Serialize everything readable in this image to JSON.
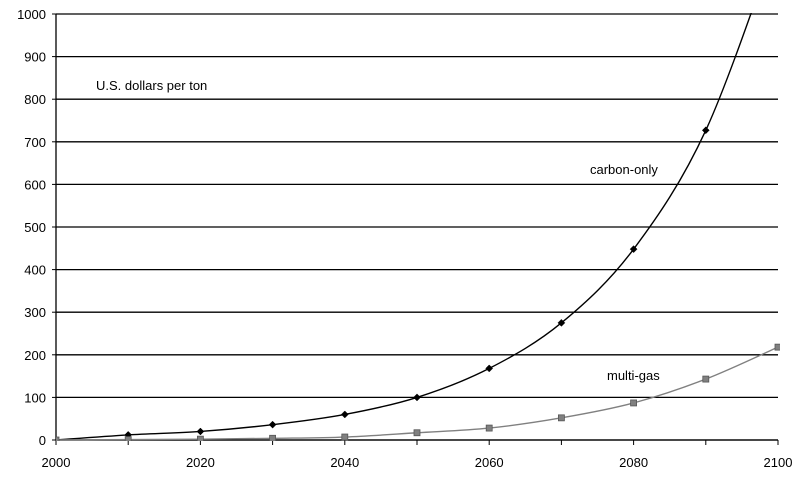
{
  "chart_data": {
    "type": "line",
    "title": "",
    "xlabel": "",
    "ylabel": "U.S. dollars per ton",
    "xlim": [
      2000,
      2100
    ],
    "ylim": [
      0,
      1000
    ],
    "x_ticks": [
      2000,
      2020,
      2040,
      2060,
      2080,
      2100
    ],
    "y_ticks": [
      0,
      100,
      200,
      300,
      400,
      500,
      600,
      700,
      800,
      900,
      1000
    ],
    "grid": "horizontal",
    "series": [
      {
        "name": "carbon-only",
        "color": "#000000",
        "marker": "diamond",
        "x": [
          2000,
          2010,
          2020,
          2030,
          2040,
          2050,
          2060,
          2070,
          2080,
          2090,
          2100
        ],
        "y": [
          0,
          12,
          20,
          36,
          60,
          100,
          168,
          275,
          448,
          727,
          1180
        ]
      },
      {
        "name": "multi-gas",
        "color": "#808080",
        "marker": "square",
        "x": [
          2000,
          2010,
          2020,
          2030,
          2040,
          2050,
          2060,
          2070,
          2080,
          2090,
          2100
        ],
        "y": [
          0,
          1,
          2,
          4,
          7,
          17,
          28,
          52,
          87,
          143,
          218
        ]
      }
    ]
  }
}
